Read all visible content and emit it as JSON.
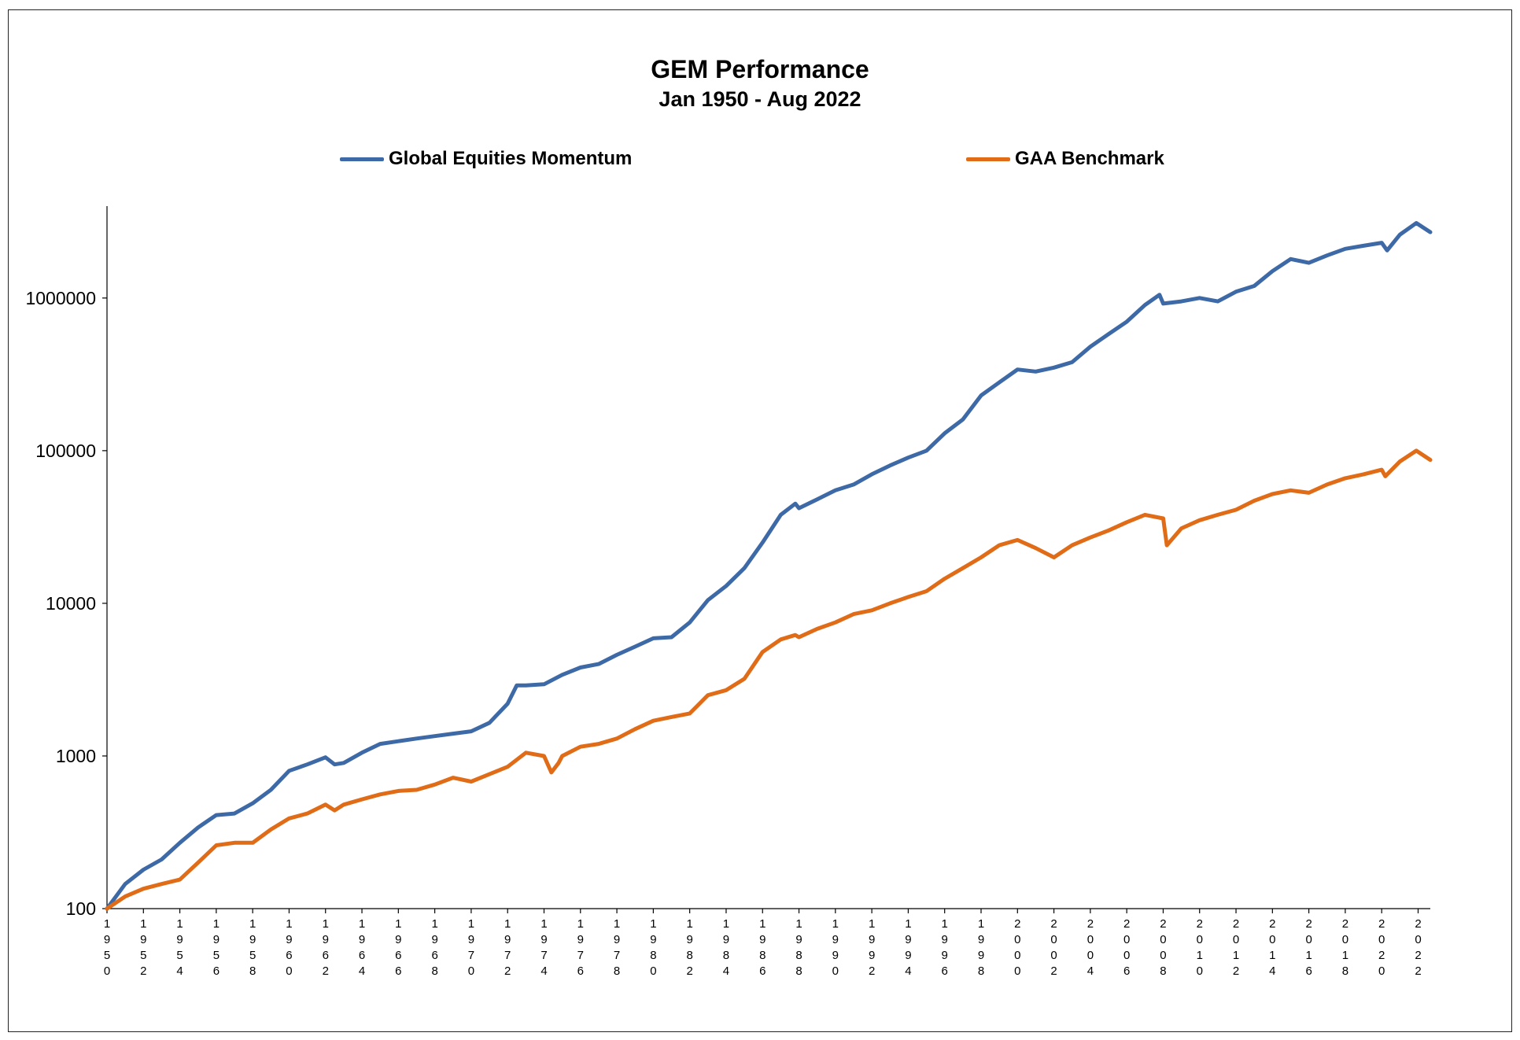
{
  "title": "GEM Performance",
  "subtitle": "Jan 1950 - Aug 2022",
  "legend": [
    {
      "name": "Global Equities Momentum",
      "color": "#3d6aa6"
    },
    {
      "name": "GAA Benchmark",
      "color": "#e06c17"
    }
  ],
  "chart_data": {
    "type": "line",
    "title": "GEM Performance",
    "subtitle": "Jan 1950 - Aug 2022",
    "xlabel": "",
    "ylabel": "",
    "yscale": "log",
    "ylim": [
      100,
      4000000
    ],
    "xlim": [
      1950,
      2022.67
    ],
    "yticks": [
      "100",
      "1000",
      "10000",
      "100000",
      "1000000"
    ],
    "xticks": [
      "1950",
      "1952",
      "1954",
      "1956",
      "1958",
      "1960",
      "1962",
      "1964",
      "1966",
      "1968",
      "1970",
      "1972",
      "1974",
      "1976",
      "1978",
      "1980",
      "1982",
      "1984",
      "1986",
      "1988",
      "1990",
      "1992",
      "1994",
      "1996",
      "1998",
      "2000",
      "2002",
      "2004",
      "2006",
      "2008",
      "2010",
      "2012",
      "2014",
      "2016",
      "2018",
      "2020",
      "2022"
    ],
    "grid": false,
    "legend_position": "top",
    "series": [
      {
        "name": "Global Equities Momentum",
        "color": "#3d6aa6",
        "x": [
          1950,
          1951,
          1952,
          1953,
          1954,
          1955,
          1956,
          1957,
          1958,
          1959,
          1960,
          1961,
          1962,
          1962.5,
          1963,
          1964,
          1965,
          1966,
          1967,
          1968,
          1969,
          1970,
          1971,
          1972,
          1972.5,
          1973,
          1974,
          1975,
          1976,
          1977,
          1978,
          1979,
          1980,
          1981,
          1982,
          1983,
          1984,
          1985,
          1986,
          1987,
          1987.8,
          1988,
          1989,
          1990,
          1991,
          1992,
          1993,
          1994,
          1995,
          1996,
          1997,
          1998,
          1999,
          2000,
          2001,
          2002,
          2003,
          2004,
          2005,
          2006,
          2007,
          2007.8,
          2008,
          2009,
          2010,
          2011,
          2012,
          2013,
          2014,
          2015,
          2016,
          2017,
          2018,
          2019,
          2020,
          2020.3,
          2021,
          2021.9,
          2022.67
        ],
        "values": [
          100,
          145,
          180,
          210,
          270,
          340,
          410,
          420,
          490,
          600,
          800,
          880,
          980,
          880,
          900,
          1050,
          1200,
          1250,
          1300,
          1350,
          1400,
          1450,
          1650,
          2200,
          2900,
          2900,
          2950,
          3400,
          3800,
          4000,
          4600,
          5200,
          5900,
          6000,
          7500,
          10500,
          13000,
          17000,
          25000,
          38000,
          45000,
          42000,
          48000,
          55000,
          60000,
          70000,
          80000,
          90000,
          100000,
          130000,
          160000,
          230000,
          280000,
          340000,
          330000,
          350000,
          380000,
          480000,
          580000,
          700000,
          900000,
          1050000,
          920000,
          950000,
          1000000,
          950000,
          1100000,
          1200000,
          1500000,
          1800000,
          1700000,
          1900000,
          2100000,
          2200000,
          2300000,
          2050000,
          2600000,
          3100000,
          2700000
        ]
      },
      {
        "name": "GAA Benchmark",
        "color": "#e06c17",
        "x": [
          1950,
          1951,
          1952,
          1953,
          1954,
          1955,
          1956,
          1957,
          1958,
          1959,
          1960,
          1961,
          1962,
          1962.5,
          1963,
          1964,
          1965,
          1966,
          1967,
          1968,
          1969,
          1970,
          1971,
          1972,
          1973,
          1974,
          1974.4,
          1974.8,
          1975,
          1976,
          1977,
          1978,
          1979,
          1980,
          1981,
          1982,
          1983,
          1984,
          1985,
          1986,
          1987,
          1987.8,
          1988,
          1989,
          1990,
          1991,
          1992,
          1993,
          1994,
          1995,
          1996,
          1997,
          1998,
          1999,
          2000,
          2001,
          2002,
          2003,
          2004,
          2005,
          2006,
          2007,
          2008,
          2008.2,
          2009,
          2010,
          2011,
          2012,
          2013,
          2014,
          2015,
          2016,
          2017,
          2018,
          2019,
          2020,
          2020.2,
          2021,
          2021.9,
          2022.67
        ],
        "values": [
          100,
          120,
          135,
          145,
          155,
          200,
          260,
          270,
          270,
          330,
          390,
          420,
          480,
          440,
          480,
          520,
          560,
          590,
          600,
          650,
          720,
          680,
          760,
          850,
          1050,
          1000,
          780,
          900,
          1000,
          1150,
          1200,
          1300,
          1500,
          1700,
          1800,
          1900,
          2500,
          2700,
          3200,
          4800,
          5800,
          6200,
          6000,
          6800,
          7500,
          8500,
          9000,
          10000,
          11000,
          12000,
          14500,
          17000,
          20000,
          24000,
          26000,
          23000,
          20000,
          24000,
          27000,
          30000,
          34000,
          38000,
          36000,
          24000,
          31000,
          35000,
          38000,
          41000,
          47000,
          52000,
          55000,
          53000,
          60000,
          66000,
          70000,
          75000,
          68000,
          85000,
          100000,
          87000
        ]
      }
    ]
  }
}
